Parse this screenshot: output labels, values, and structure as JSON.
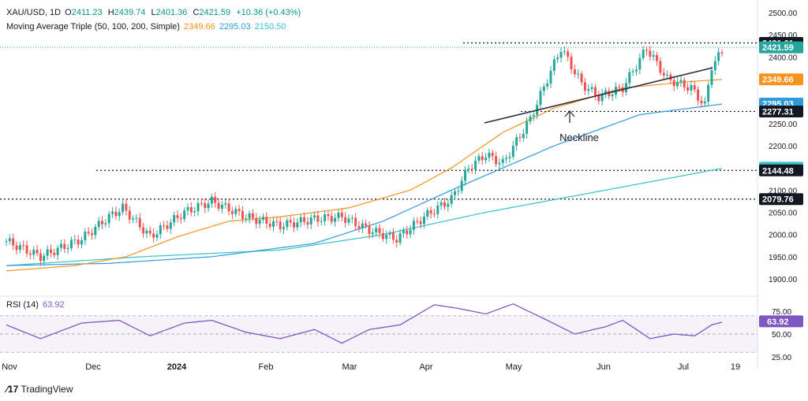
{
  "header": {
    "symbol": "XAU/USD, 1D",
    "ohlc": [
      {
        "k": "O",
        "v": "2411.23"
      },
      {
        "k": "H",
        "v": "2439.74"
      },
      {
        "k": "L",
        "v": "2401.36"
      },
      {
        "k": "C",
        "v": "2421.59"
      }
    ],
    "change": "+10.36 (+0.43%)",
    "ma_label": "Moving Average Triple (50, 100, 200, Simple)",
    "ma_values": [
      "2349.66",
      "2295.03",
      "2150.50"
    ],
    "rsi_label": "RSI (14)",
    "rsi_value": "63.92"
  },
  "colors": {
    "up": "#26a69a",
    "down": "#ef5350",
    "ma50": "#f7931a",
    "ma100": "#2e9bdc",
    "ma200": "#36c1c9",
    "rsi": "#7e57c2",
    "level_tag": "#131722"
  },
  "annotation": "Neckline",
  "brand": "TradingView",
  "chart_data": {
    "type": "candlestick",
    "price_axis": {
      "ticks": [
        1900,
        1950,
        2000,
        2050,
        2100,
        2150,
        2200,
        2250,
        2300,
        2350,
        2400,
        2450,
        2500
      ],
      "range": [
        1880,
        2510
      ]
    },
    "rsi_axis": {
      "ticks": [
        25,
        50,
        75
      ],
      "range": [
        20,
        90
      ],
      "bands": [
        30,
        70
      ]
    },
    "x_labels": [
      "Nov",
      "Dec",
      "2024",
      "Feb",
      "Mar",
      "Apr",
      "May",
      "Jun",
      "Jul",
      "19"
    ],
    "price_tags": [
      {
        "label": "2431.61",
        "value": 2431.61,
        "kind": "level"
      },
      {
        "label": "2421.59",
        "value": 2421.59,
        "kind": "last"
      },
      {
        "label": "2349.66",
        "value": 2349.66,
        "kind": "ma50"
      },
      {
        "label": "2295.03",
        "value": 2295.03,
        "kind": "ma100"
      },
      {
        "label": "2277.31",
        "value": 2277.31,
        "kind": "level"
      },
      {
        "label": "2150.50",
        "value": 2150.5,
        "kind": "ma200"
      },
      {
        "label": "2144.48",
        "value": 2144.48,
        "kind": "level"
      },
      {
        "label": "2079.76",
        "value": 2079.76,
        "kind": "level"
      }
    ],
    "horizontal_levels": [
      2431.61,
      2277.31,
      2144.48,
      2079.76
    ],
    "ma_keypoints": {
      "ma50": [
        [
          1918,
          0
        ],
        [
          1930,
          20
        ],
        [
          1950,
          35
        ],
        [
          1995,
          50
        ],
        [
          2030,
          65
        ],
        [
          2040,
          80
        ],
        [
          2060,
          100
        ],
        [
          2100,
          118
        ],
        [
          2150,
          130
        ],
        [
          2230,
          145
        ],
        [
          2285,
          160
        ],
        [
          2330,
          180
        ],
        [
          2345,
          200
        ],
        [
          2349.66,
          210
        ]
      ],
      "ma100": [
        [
          1930,
          0
        ],
        [
          1935,
          30
        ],
        [
          1950,
          60
        ],
        [
          1980,
          90
        ],
        [
          2030,
          110
        ],
        [
          2100,
          130
        ],
        [
          2200,
          160
        ],
        [
          2270,
          185
        ],
        [
          2295.03,
          210
        ]
      ],
      "ma200": [
        [
          1930,
          0
        ],
        [
          1950,
          40
        ],
        [
          1965,
          80
        ],
        [
          2000,
          110
        ],
        [
          2050,
          140
        ],
        [
          2100,
          175
        ],
        [
          2150.5,
          210
        ]
      ]
    },
    "price_keypoints": [
      [
        1985,
        0
      ],
      [
        1950,
        10
      ],
      [
        1990,
        22
      ],
      [
        2040,
        30
      ],
      [
        2060,
        34
      ],
      [
        1995,
        42
      ],
      [
        2050,
        52
      ],
      [
        2075,
        60
      ],
      [
        2040,
        70
      ],
      [
        2020,
        80
      ],
      [
        2035,
        90
      ],
      [
        2040,
        98
      ],
      [
        2010,
        106
      ],
      [
        1990,
        114
      ],
      [
        2040,
        122
      ],
      [
        2080,
        130
      ],
      [
        2150,
        135
      ],
      [
        2180,
        140
      ],
      [
        2160,
        145
      ],
      [
        2260,
        153
      ],
      [
        2350,
        158
      ],
      [
        2420,
        162
      ],
      [
        2340,
        168
      ],
      [
        2310,
        173
      ],
      [
        2330,
        180
      ],
      [
        2420,
        187
      ],
      [
        2350,
        193
      ],
      [
        2330,
        200
      ],
      [
        2290,
        204
      ],
      [
        2380,
        206
      ],
      [
        2421.59,
        210
      ]
    ],
    "rsi_keypoints": [
      [
        60,
        0
      ],
      [
        45,
        10
      ],
      [
        62,
        22
      ],
      [
        65,
        33
      ],
      [
        48,
        42
      ],
      [
        62,
        52
      ],
      [
        65,
        60
      ],
      [
        52,
        70
      ],
      [
        45,
        80
      ],
      [
        55,
        90
      ],
      [
        40,
        98
      ],
      [
        55,
        106
      ],
      [
        60,
        115
      ],
      [
        82,
        125
      ],
      [
        78,
        132
      ],
      [
        72,
        140
      ],
      [
        83,
        148
      ],
      [
        65,
        158
      ],
      [
        50,
        166
      ],
      [
        58,
        175
      ],
      [
        65,
        180
      ],
      [
        45,
        188
      ],
      [
        50,
        195
      ],
      [
        48,
        201
      ],
      [
        60,
        206
      ],
      [
        63.92,
        210
      ]
    ]
  }
}
